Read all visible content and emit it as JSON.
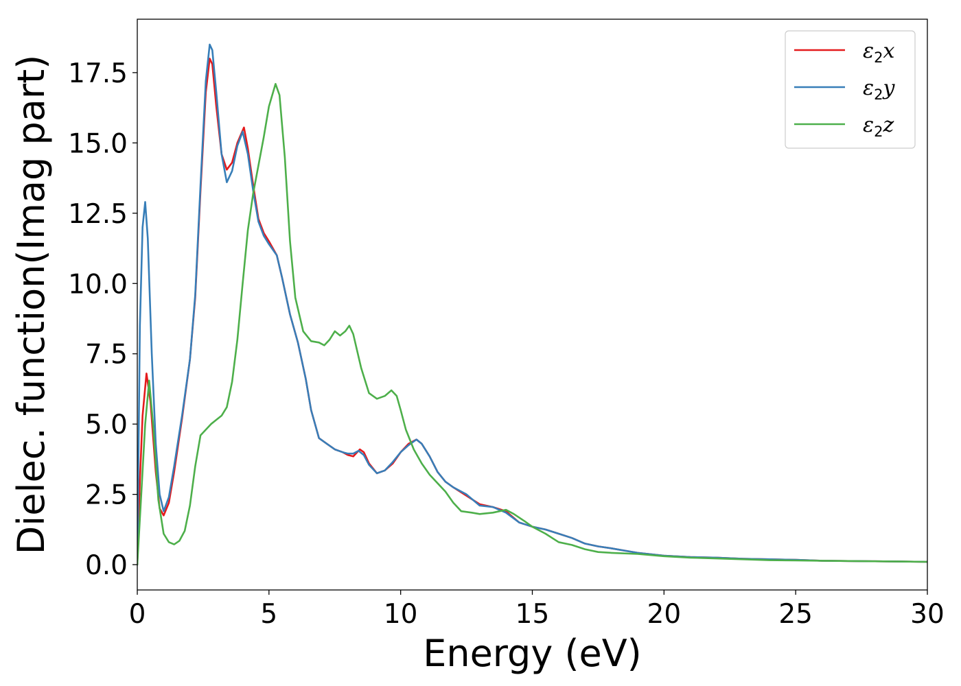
{
  "chart_data": {
    "type": "line",
    "xlabel": "Energy (eV)",
    "ylabel": "Dielec. function(Imag part)",
    "xlim": [
      0,
      30
    ],
    "ylim": [
      -0.9,
      19.4
    ],
    "xticks": [
      "0",
      "5",
      "10",
      "15",
      "20",
      "25",
      "30"
    ],
    "yticks": [
      "0.0",
      "2.5",
      "5.0",
      "7.5",
      "10.0",
      "12.5",
      "15.0",
      "17.5"
    ],
    "legend_position": "top-right",
    "grid": false,
    "series": [
      {
        "name": "ε2x",
        "color": "#e41a1c",
        "points": [
          [
            0,
            0.0
          ],
          [
            0.1,
            3.0
          ],
          [
            0.2,
            5.3
          ],
          [
            0.35,
            6.8
          ],
          [
            0.5,
            5.8
          ],
          [
            0.7,
            3.3
          ],
          [
            0.85,
            2.0
          ],
          [
            1.0,
            1.75
          ],
          [
            1.2,
            2.2
          ],
          [
            1.4,
            3.3
          ],
          [
            1.7,
            5.2
          ],
          [
            2.0,
            7.3
          ],
          [
            2.2,
            9.5
          ],
          [
            2.4,
            13.3
          ],
          [
            2.6,
            16.8
          ],
          [
            2.75,
            18.0
          ],
          [
            2.85,
            17.8
          ],
          [
            3.0,
            16.3
          ],
          [
            3.2,
            14.6
          ],
          [
            3.4,
            14.05
          ],
          [
            3.6,
            14.3
          ],
          [
            3.8,
            15.0
          ],
          [
            4.05,
            15.55
          ],
          [
            4.2,
            14.8
          ],
          [
            4.4,
            13.5
          ],
          [
            4.6,
            12.3
          ],
          [
            4.8,
            11.8
          ],
          [
            5.0,
            11.5
          ],
          [
            5.3,
            11.0
          ],
          [
            5.5,
            10.2
          ],
          [
            5.8,
            8.9
          ],
          [
            6.1,
            7.9
          ],
          [
            6.4,
            6.6
          ],
          [
            6.6,
            5.5
          ],
          [
            6.9,
            4.5
          ],
          [
            7.2,
            4.3
          ],
          [
            7.5,
            4.1
          ],
          [
            7.8,
            4.0
          ],
          [
            8.0,
            3.9
          ],
          [
            8.2,
            3.85
          ],
          [
            8.45,
            4.1
          ],
          [
            8.6,
            4.0
          ],
          [
            8.8,
            3.6
          ],
          [
            9.1,
            3.25
          ],
          [
            9.4,
            3.35
          ],
          [
            9.7,
            3.6
          ],
          [
            10.0,
            4.0
          ],
          [
            10.3,
            4.3
          ],
          [
            10.6,
            4.45
          ],
          [
            10.8,
            4.3
          ],
          [
            11.1,
            3.85
          ],
          [
            11.4,
            3.3
          ],
          [
            11.7,
            2.95
          ],
          [
            12.0,
            2.75
          ],
          [
            12.5,
            2.45
          ],
          [
            13.0,
            2.15
          ],
          [
            13.5,
            2.05
          ],
          [
            14.0,
            1.9
          ],
          [
            14.5,
            1.5
          ],
          [
            15.0,
            1.35
          ],
          [
            15.5,
            1.25
          ],
          [
            16.0,
            1.1
          ],
          [
            16.5,
            0.95
          ],
          [
            17.0,
            0.75
          ],
          [
            17.5,
            0.65
          ],
          [
            18.0,
            0.58
          ],
          [
            18.5,
            0.5
          ],
          [
            19.0,
            0.42
          ],
          [
            20.0,
            0.32
          ],
          [
            21.0,
            0.27
          ],
          [
            22.0,
            0.25
          ],
          [
            23.0,
            0.21
          ],
          [
            24.0,
            0.19
          ],
          [
            25.0,
            0.17
          ],
          [
            26.0,
            0.14
          ],
          [
            27.0,
            0.13
          ],
          [
            28.0,
            0.12
          ],
          [
            29.0,
            0.11
          ],
          [
            30.0,
            0.1
          ]
        ]
      },
      {
        "name": "ε2y",
        "color": "#377eb8",
        "points": [
          [
            0,
            0.0
          ],
          [
            0.1,
            8.5
          ],
          [
            0.2,
            12.0
          ],
          [
            0.3,
            12.9
          ],
          [
            0.4,
            11.6
          ],
          [
            0.55,
            7.5
          ],
          [
            0.7,
            4.3
          ],
          [
            0.85,
            2.5
          ],
          [
            1.0,
            1.9
          ],
          [
            1.2,
            2.4
          ],
          [
            1.4,
            3.5
          ],
          [
            1.7,
            5.3
          ],
          [
            2.0,
            7.3
          ],
          [
            2.2,
            9.6
          ],
          [
            2.4,
            13.5
          ],
          [
            2.6,
            17.2
          ],
          [
            2.75,
            18.5
          ],
          [
            2.85,
            18.3
          ],
          [
            3.0,
            16.8
          ],
          [
            3.2,
            14.6
          ],
          [
            3.4,
            13.6
          ],
          [
            3.6,
            14.0
          ],
          [
            3.8,
            14.9
          ],
          [
            4.0,
            15.4
          ],
          [
            4.2,
            14.6
          ],
          [
            4.4,
            13.3
          ],
          [
            4.6,
            12.2
          ],
          [
            4.8,
            11.7
          ],
          [
            5.0,
            11.4
          ],
          [
            5.3,
            11.0
          ],
          [
            5.5,
            10.2
          ],
          [
            5.8,
            8.9
          ],
          [
            6.1,
            7.9
          ],
          [
            6.4,
            6.6
          ],
          [
            6.6,
            5.5
          ],
          [
            6.9,
            4.5
          ],
          [
            7.2,
            4.3
          ],
          [
            7.5,
            4.1
          ],
          [
            7.8,
            4.0
          ],
          [
            8.0,
            3.95
          ],
          [
            8.2,
            3.95
          ],
          [
            8.4,
            4.05
          ],
          [
            8.6,
            3.9
          ],
          [
            8.8,
            3.55
          ],
          [
            9.1,
            3.25
          ],
          [
            9.4,
            3.35
          ],
          [
            9.7,
            3.65
          ],
          [
            10.0,
            4.0
          ],
          [
            10.3,
            4.25
          ],
          [
            10.6,
            4.45
          ],
          [
            10.8,
            4.3
          ],
          [
            11.1,
            3.85
          ],
          [
            11.4,
            3.3
          ],
          [
            11.7,
            2.95
          ],
          [
            12.0,
            2.75
          ],
          [
            12.5,
            2.5
          ],
          [
            13.0,
            2.1
          ],
          [
            13.5,
            2.05
          ],
          [
            14.0,
            1.85
          ],
          [
            14.5,
            1.5
          ],
          [
            15.0,
            1.35
          ],
          [
            15.5,
            1.25
          ],
          [
            16.0,
            1.1
          ],
          [
            16.5,
            0.95
          ],
          [
            17.0,
            0.75
          ],
          [
            17.5,
            0.65
          ],
          [
            18.0,
            0.58
          ],
          [
            18.5,
            0.5
          ],
          [
            19.0,
            0.42
          ],
          [
            20.0,
            0.32
          ],
          [
            21.0,
            0.27
          ],
          [
            22.0,
            0.25
          ],
          [
            23.0,
            0.21
          ],
          [
            24.0,
            0.19
          ],
          [
            25.0,
            0.17
          ],
          [
            26.0,
            0.14
          ],
          [
            27.0,
            0.13
          ],
          [
            28.0,
            0.12
          ],
          [
            29.0,
            0.11
          ],
          [
            30.0,
            0.1
          ]
        ]
      },
      {
        "name": "ε2z",
        "color": "#4daf4a",
        "points": [
          [
            0,
            0.0
          ],
          [
            0.15,
            2.5
          ],
          [
            0.3,
            5.0
          ],
          [
            0.45,
            6.55
          ],
          [
            0.6,
            5.0
          ],
          [
            0.8,
            2.3
          ],
          [
            1.0,
            1.1
          ],
          [
            1.2,
            0.8
          ],
          [
            1.4,
            0.72
          ],
          [
            1.6,
            0.85
          ],
          [
            1.8,
            1.2
          ],
          [
            2.0,
            2.1
          ],
          [
            2.2,
            3.5
          ],
          [
            2.4,
            4.6
          ],
          [
            2.6,
            4.8
          ],
          [
            2.8,
            5.0
          ],
          [
            3.0,
            5.15
          ],
          [
            3.2,
            5.3
          ],
          [
            3.4,
            5.6
          ],
          [
            3.6,
            6.5
          ],
          [
            3.8,
            8.0
          ],
          [
            4.0,
            10.0
          ],
          [
            4.2,
            11.9
          ],
          [
            4.4,
            13.2
          ],
          [
            4.6,
            14.2
          ],
          [
            4.8,
            15.2
          ],
          [
            5.0,
            16.3
          ],
          [
            5.25,
            17.1
          ],
          [
            5.4,
            16.7
          ],
          [
            5.6,
            14.5
          ],
          [
            5.8,
            11.5
          ],
          [
            6.0,
            9.5
          ],
          [
            6.3,
            8.3
          ],
          [
            6.6,
            7.95
          ],
          [
            6.9,
            7.9
          ],
          [
            7.1,
            7.8
          ],
          [
            7.3,
            8.0
          ],
          [
            7.5,
            8.3
          ],
          [
            7.7,
            8.15
          ],
          [
            7.9,
            8.3
          ],
          [
            8.05,
            8.5
          ],
          [
            8.2,
            8.2
          ],
          [
            8.5,
            7.0
          ],
          [
            8.8,
            6.1
          ],
          [
            9.1,
            5.9
          ],
          [
            9.4,
            6.0
          ],
          [
            9.65,
            6.2
          ],
          [
            9.85,
            6.0
          ],
          [
            10.0,
            5.5
          ],
          [
            10.2,
            4.8
          ],
          [
            10.5,
            4.1
          ],
          [
            10.8,
            3.6
          ],
          [
            11.1,
            3.2
          ],
          [
            11.4,
            2.9
          ],
          [
            11.7,
            2.6
          ],
          [
            12.0,
            2.2
          ],
          [
            12.3,
            1.9
          ],
          [
            12.7,
            1.85
          ],
          [
            13.0,
            1.8
          ],
          [
            13.5,
            1.85
          ],
          [
            14.0,
            1.95
          ],
          [
            14.3,
            1.8
          ],
          [
            14.7,
            1.55
          ],
          [
            15.0,
            1.35
          ],
          [
            15.5,
            1.1
          ],
          [
            16.0,
            0.8
          ],
          [
            16.5,
            0.7
          ],
          [
            17.0,
            0.55
          ],
          [
            17.5,
            0.45
          ],
          [
            18.0,
            0.42
          ],
          [
            19.0,
            0.38
          ],
          [
            20.0,
            0.3
          ],
          [
            21.0,
            0.25
          ],
          [
            22.0,
            0.22
          ],
          [
            23.0,
            0.19
          ],
          [
            24.0,
            0.16
          ],
          [
            25.0,
            0.15
          ],
          [
            26.0,
            0.14
          ],
          [
            27.0,
            0.13
          ],
          [
            28.0,
            0.12
          ],
          [
            29.0,
            0.11
          ],
          [
            30.0,
            0.1
          ]
        ]
      }
    ]
  }
}
